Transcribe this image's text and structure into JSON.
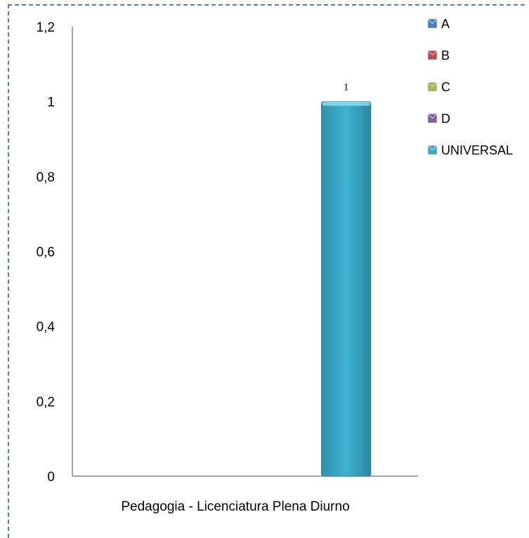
{
  "chart_data": {
    "type": "bar",
    "title": "",
    "xlabel": "",
    "ylabel": "",
    "categories": [
      "Pedagogia - Licenciatura Plena Diurno"
    ],
    "series": [
      {
        "name": "A",
        "values": [
          0
        ],
        "color": "#4a7ebb"
      },
      {
        "name": "B",
        "values": [
          0
        ],
        "color": "#be4b48"
      },
      {
        "name": "C",
        "values": [
          0
        ],
        "color": "#98b954"
      },
      {
        "name": "D",
        "values": [
          0
        ],
        "color": "#7d60a0"
      },
      {
        "name": "UNIVERSAL",
        "values": [
          1
        ],
        "color": "#38a9c6"
      }
    ],
    "yticks": [
      "0",
      "0,2",
      "0,4",
      "0,6",
      "0,8",
      "1",
      "1,2"
    ],
    "ylim": [
      0,
      1.2
    ],
    "data_labels": {
      "UNIVERSAL": "1"
    },
    "grid": false,
    "legend_position": "right"
  }
}
